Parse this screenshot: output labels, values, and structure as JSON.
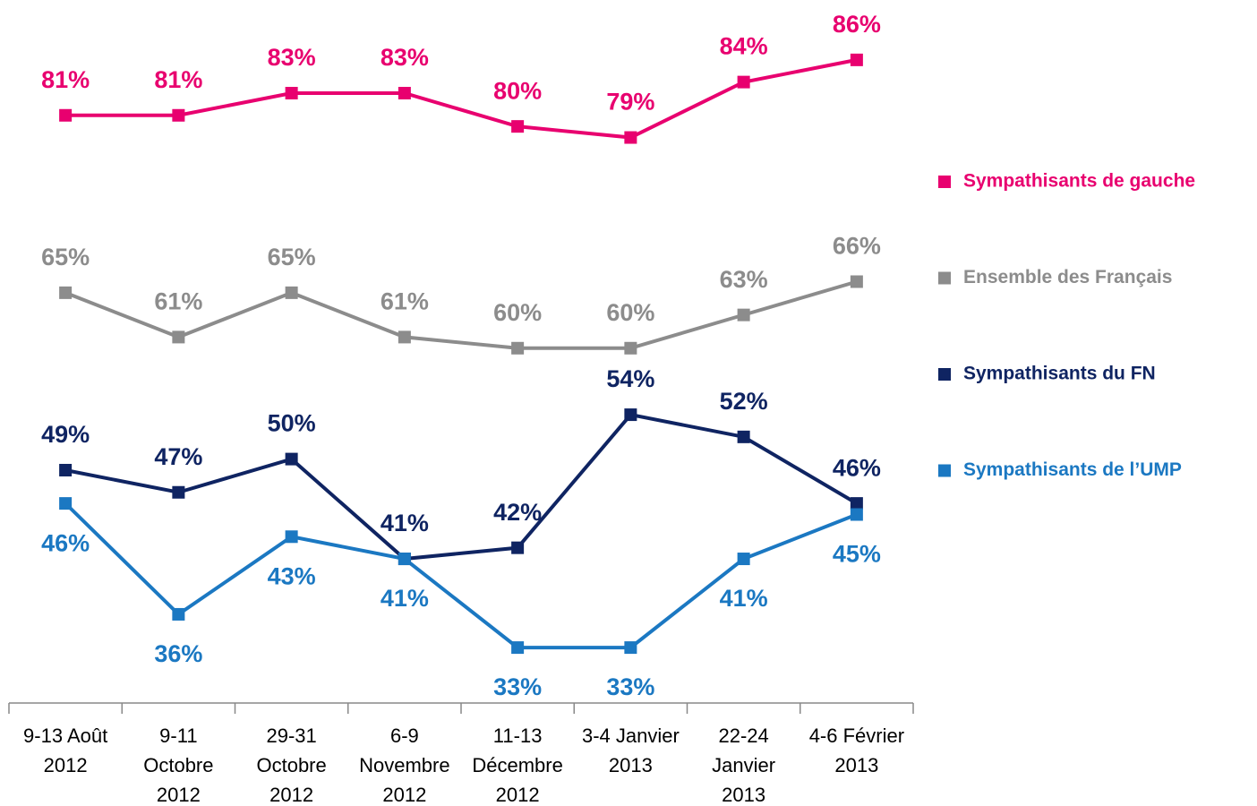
{
  "chart_data": {
    "type": "line",
    "categories": [
      "9-13 Août\n2012",
      "9-11\nOctobre\n2012",
      "29-31\nOctobre\n2012",
      "6-9\nNovembre\n2012",
      "11-13\nDécembre\n2012",
      "3-4 Janvier\n2013",
      "22-24\nJanvier\n2013",
      "4-6 Février\n2013"
    ],
    "series": [
      {
        "name": "Sympathisants de gauche",
        "color": "#e8006f",
        "values": [
          81,
          81,
          83,
          83,
          80,
          79,
          84,
          86
        ],
        "value_labels": [
          "81%",
          "81%",
          "83%",
          "83%",
          "80%",
          "79%",
          "84%",
          "86%"
        ],
        "label_position": "above"
      },
      {
        "name": "Ensemble des Français",
        "color": "#8c8c8c",
        "values": [
          65,
          61,
          65,
          61,
          60,
          60,
          63,
          66
        ],
        "value_labels": [
          "65%",
          "61%",
          "65%",
          "61%",
          "60%",
          "60%",
          "63%",
          "66%"
        ],
        "label_position": "above"
      },
      {
        "name": "Sympathisants du FN",
        "color": "#0f2462",
        "values": [
          49,
          47,
          50,
          41,
          42,
          54,
          52,
          46
        ],
        "value_labels": [
          "49%",
          "47%",
          "50%",
          "41%",
          "42%",
          "54%",
          "52%",
          "46%"
        ],
        "label_position": "above"
      },
      {
        "name": "Sympathisants de l’UMP",
        "color": "#1b78c2",
        "values": [
          46,
          36,
          43,
          41,
          33,
          33,
          41,
          45
        ],
        "value_labels": [
          "46%",
          "36%",
          "43%",
          "41%",
          "33%",
          "33%",
          "41%",
          "45%"
        ],
        "label_position": "below"
      }
    ],
    "ylim": [
      28,
      91.4
    ],
    "legend": "right"
  }
}
